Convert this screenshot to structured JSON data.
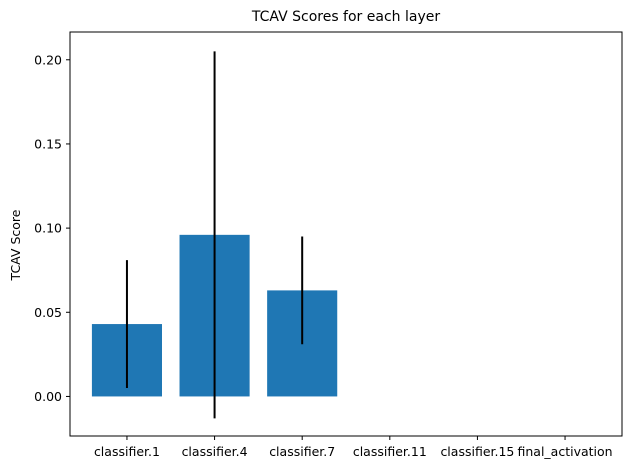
{
  "chart_data": {
    "type": "bar",
    "title": "TCAV Scores for each layer",
    "xlabel": "",
    "ylabel": "TCAV Score",
    "categories": [
      "classifier.1",
      "classifier.4",
      "classifier.7",
      "classifier.11",
      "classifier.15",
      "final_activation"
    ],
    "values": [
      0.043,
      0.096,
      0.063,
      0,
      0,
      0
    ],
    "error": [
      0.038,
      0.109,
      0.032,
      0,
      0,
      0
    ],
    "ylim": [
      -0.0235,
      0.2165
    ],
    "yticks": [
      0.0,
      0.05,
      0.1,
      0.15,
      0.2
    ],
    "ytick_labels": [
      "0.00",
      "0.05",
      "0.10",
      "0.15",
      "0.20"
    ],
    "bar_color": "#1f77b4",
    "errorbar_color": "#000000",
    "grid": false,
    "legend": "none"
  }
}
